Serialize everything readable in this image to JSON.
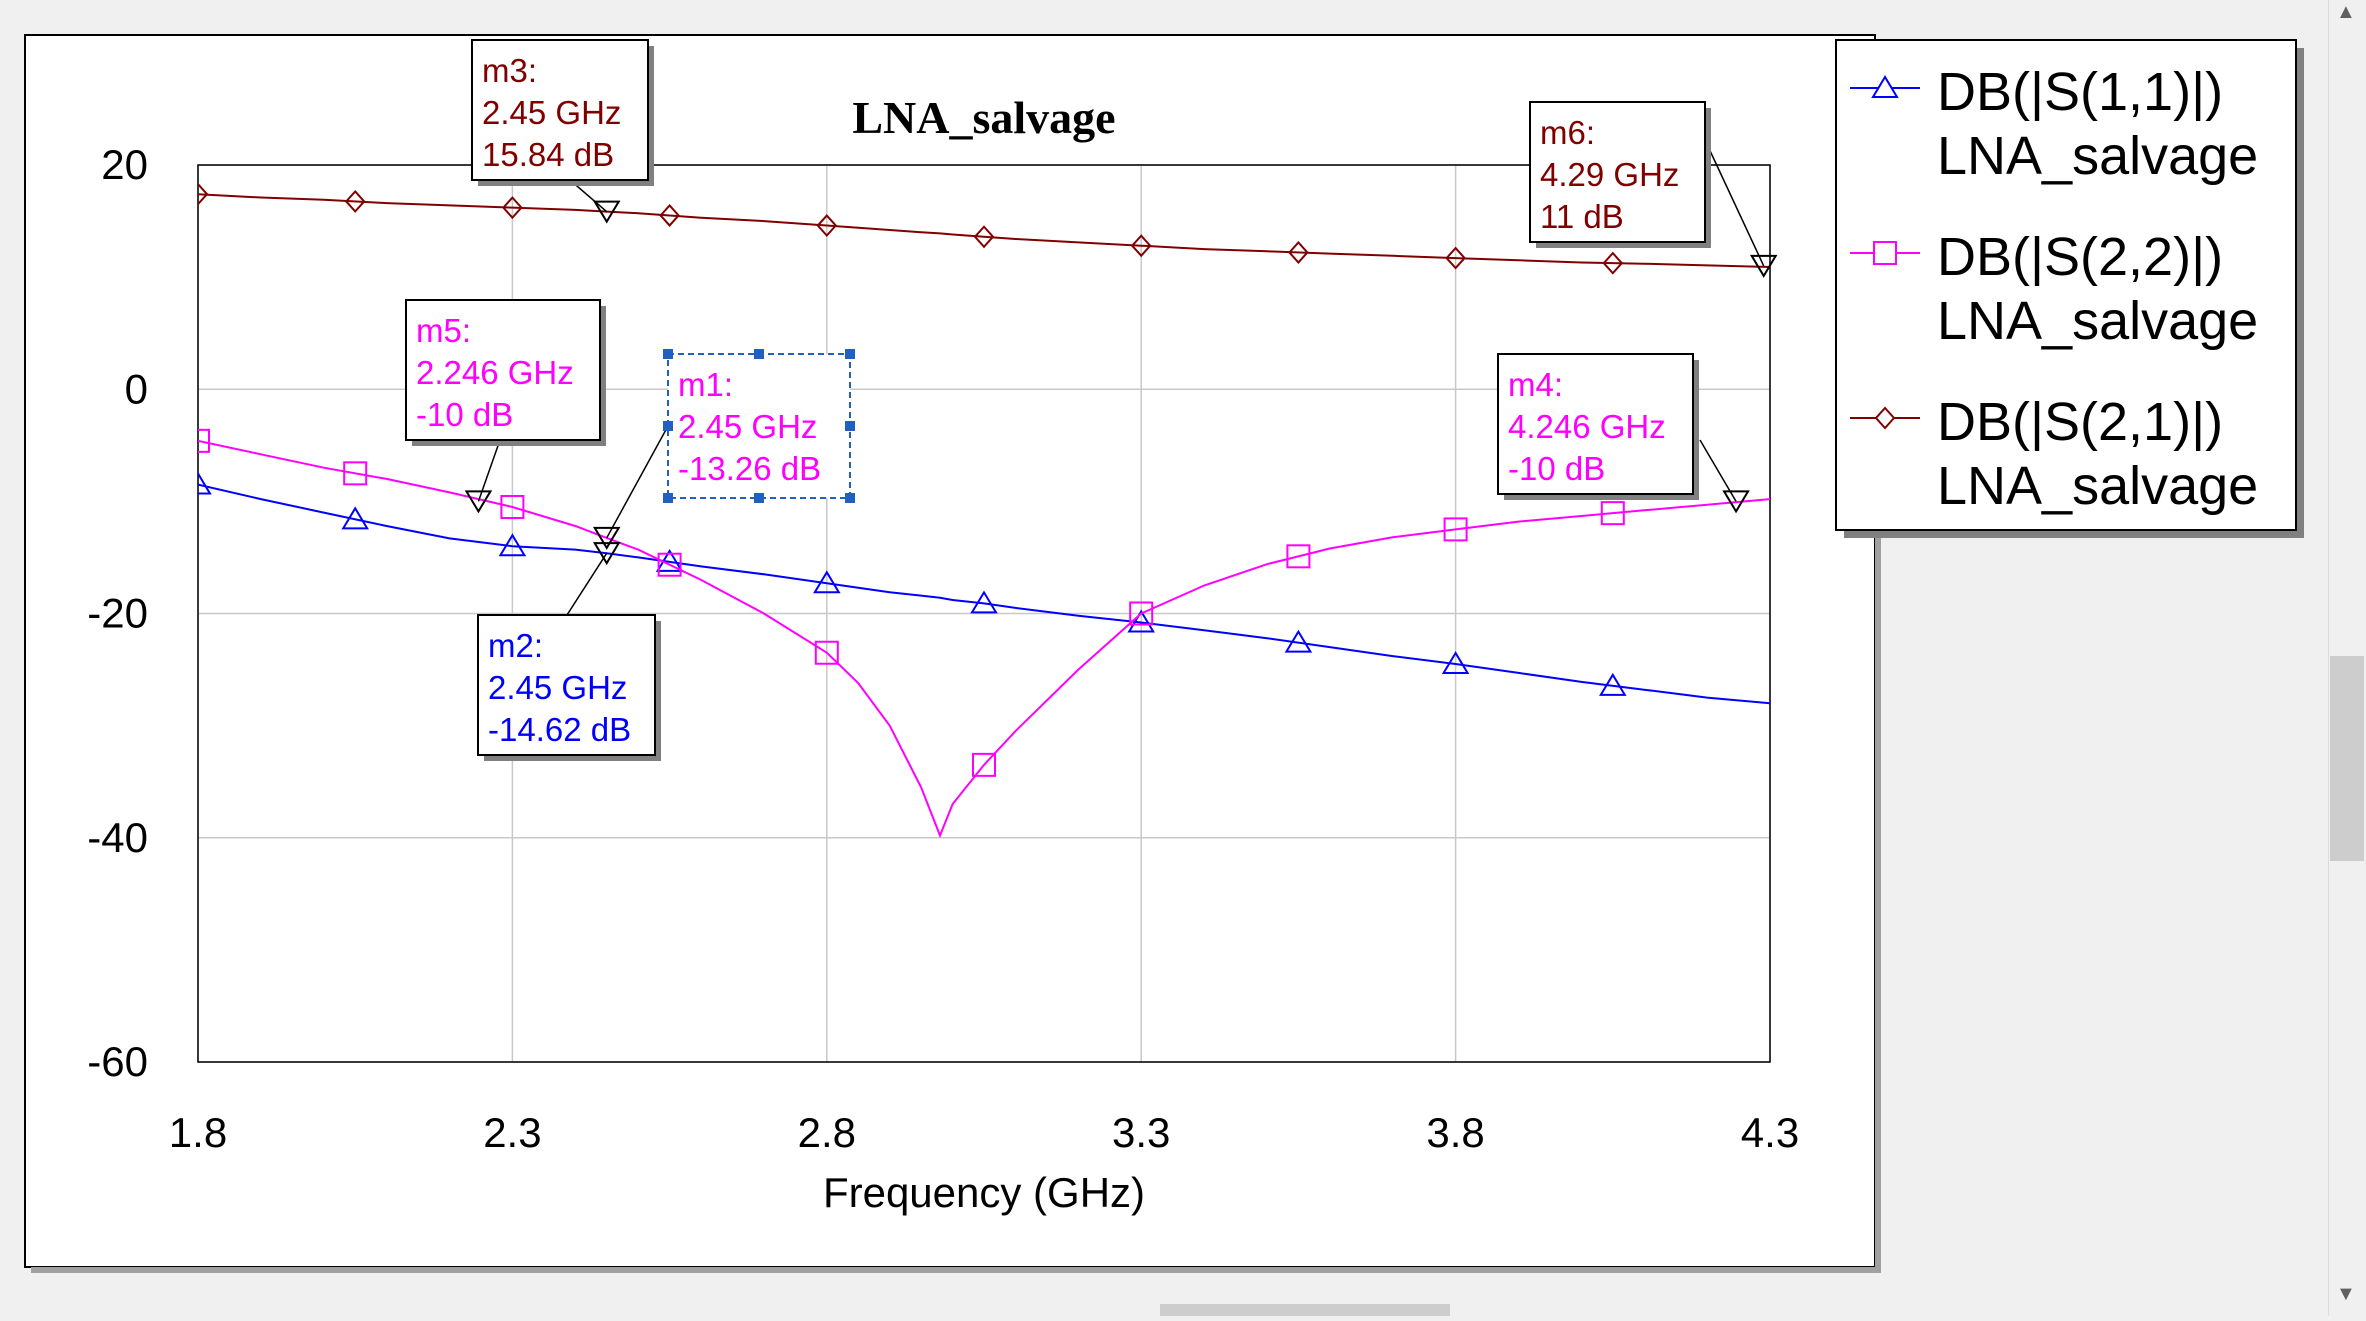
{
  "chart_data": {
    "type": "line",
    "title": "LNA_salvage",
    "xlabel": "Frequency (GHz)",
    "ylabel": "",
    "xlim": [
      1.8,
      4.3
    ],
    "ylim": [
      -60,
      20
    ],
    "x_ticks": [
      "1.8",
      "2.3",
      "2.8",
      "3.3",
      "3.8",
      "4.3"
    ],
    "y_ticks": [
      "20",
      "0",
      "-20",
      "-40",
      "-60"
    ],
    "grid": true,
    "legend_position": "right",
    "x": [
      1.8,
      1.9,
      2.0,
      2.1,
      2.2,
      2.3,
      2.4,
      2.45,
      2.5,
      2.6,
      2.7,
      2.8,
      2.85,
      2.9,
      2.95,
      2.98,
      3.0,
      3.05,
      3.1,
      3.2,
      3.3,
      3.4,
      3.5,
      3.6,
      3.7,
      3.8,
      3.9,
      4.0,
      4.1,
      4.2,
      4.3
    ],
    "series": [
      {
        "name": "DB(|S(1,1)|)",
        "subname": "LNA_salvage",
        "color": "#0000ff",
        "marker": "triangle",
        "values": [
          -8.5,
          -9.8,
          -11.0,
          -12.2,
          -13.3,
          -14.0,
          -14.3,
          -14.62,
          -15.0,
          -15.8,
          -16.5,
          -17.3,
          -17.7,
          -18.1,
          -18.4,
          -18.6,
          -18.8,
          -19.1,
          -19.5,
          -20.2,
          -20.8,
          -21.5,
          -22.2,
          -23.0,
          -23.8,
          -24.5,
          -25.3,
          -26.1,
          -26.8,
          -27.5,
          -28.0
        ],
        "marker_x": [
          1.8,
          2.05,
          2.3,
          2.55,
          2.8,
          3.05,
          3.3,
          3.55,
          3.8,
          4.05
        ]
      },
      {
        "name": "DB(|S(2,2)|)",
        "subname": "LNA_salvage",
        "color": "#ff00ff",
        "marker": "square",
        "values": [
          -4.6,
          -5.8,
          -7.0,
          -8.0,
          -9.2,
          -10.5,
          -12.2,
          -13.26,
          -14.3,
          -17.0,
          -20.0,
          -23.5,
          -26.2,
          -30.0,
          -35.5,
          -39.8,
          -37.0,
          -33.5,
          -30.5,
          -25.0,
          -20.0,
          -17.5,
          -15.6,
          -14.2,
          -13.2,
          -12.5,
          -11.8,
          -11.3,
          -10.8,
          -10.3,
          -9.8
        ],
        "marker_x": [
          1.8,
          2.05,
          2.3,
          2.55,
          2.8,
          3.05,
          3.3,
          3.55,
          3.8,
          4.05
        ]
      },
      {
        "name": "DB(|S(2,1)|)",
        "subname": "LNA_salvage",
        "color": "#800000",
        "marker": "diamond",
        "values": [
          17.4,
          17.1,
          16.9,
          16.6,
          16.4,
          16.2,
          16.0,
          15.84,
          15.7,
          15.3,
          15.0,
          14.6,
          14.4,
          14.2,
          14.0,
          13.9,
          13.8,
          13.6,
          13.4,
          13.1,
          12.8,
          12.5,
          12.3,
          12.1,
          11.9,
          11.7,
          11.5,
          11.3,
          11.2,
          11.05,
          10.9
        ],
        "marker_x": [
          1.8,
          2.05,
          2.3,
          2.55,
          2.8,
          3.05,
          3.3,
          3.55,
          3.8,
          4.05
        ]
      }
    ],
    "markers": [
      {
        "label": "m1:",
        "freq": "2.45 GHz",
        "value": "-13.26 dB",
        "x": 2.45,
        "y": -13.26,
        "series": 1,
        "selected": true
      },
      {
        "label": "m2:",
        "freq": "2.45 GHz",
        "value": "-14.62 dB",
        "x": 2.45,
        "y": -14.62,
        "series": 0,
        "selected": false
      },
      {
        "label": "m3:",
        "freq": "2.45 GHz",
        "value": "15.84 dB",
        "x": 2.45,
        "y": 15.84,
        "series": 2,
        "selected": false
      },
      {
        "label": "m4:",
        "freq": "4.246 GHz",
        "value": "-10 dB",
        "x": 4.246,
        "y": -10,
        "series": 1,
        "selected": false
      },
      {
        "label": "m5:",
        "freq": "2.246 GHz",
        "value": "-10 dB",
        "x": 2.246,
        "y": -10,
        "series": 1,
        "selected": false
      },
      {
        "label": "m6:",
        "freq": "4.29 GHz",
        "value": "11 dB",
        "x": 4.29,
        "y": 11,
        "series": 2,
        "selected": false
      }
    ]
  }
}
